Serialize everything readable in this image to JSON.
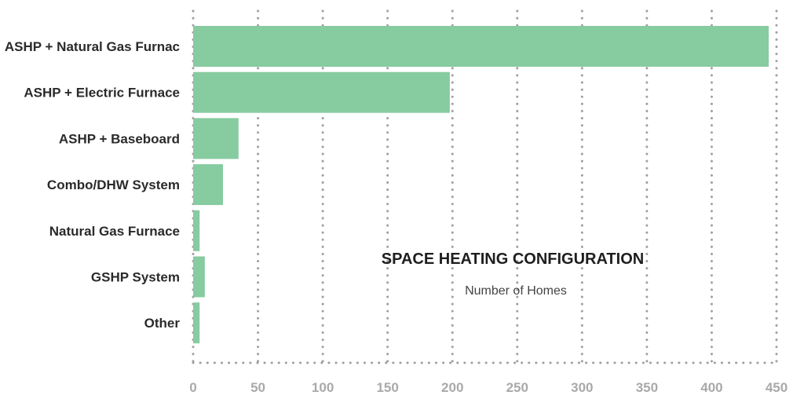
{
  "chart_data": {
    "type": "bar",
    "orientation": "horizontal",
    "title": "SPACE HEATING CONFIGURATION",
    "subtitle": "Number of Homes",
    "categories": [
      "ASHP + Natural Gas Furnac",
      "ASHP + Electric Furnace",
      "ASHP + Baseboard",
      "Combo/DHW System",
      "Natural Gas Furnace",
      "GSHP System",
      "Other"
    ],
    "values": [
      444,
      198,
      35,
      23,
      5,
      9,
      5
    ],
    "xlim": [
      0,
      450
    ],
    "xticks": [
      "0",
      "50",
      "100",
      "150",
      "200",
      "250",
      "300",
      "350",
      "400",
      "450"
    ],
    "grid": "vertical dotted",
    "bar_color": "#87cba1",
    "grid_color": "#a0a0a0"
  }
}
